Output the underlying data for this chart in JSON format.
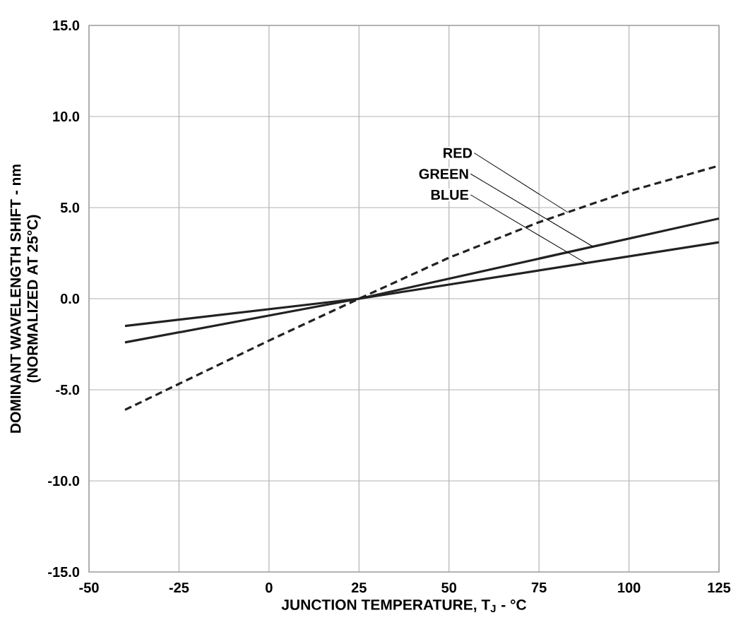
{
  "chart_data": {
    "type": "line",
    "xlabel": "JUNCTION TEMPERATURE, T$_{J}$ - °C",
    "ylabel": "DOMINANT WAVELENGTH SHIFT - nm\n(NORMALIZED AT 25°C)",
    "xlim": [
      -50,
      125
    ],
    "ylim": [
      -15,
      15
    ],
    "xticks": [
      -50,
      -25,
      0,
      25,
      50,
      75,
      100,
      125
    ],
    "yticks": [
      {
        "value": -15,
        "label": "-15.0"
      },
      {
        "value": -10,
        "label": "-10.0"
      },
      {
        "value": -5,
        "label": "-5.0"
      },
      {
        "value": 0,
        "label": "0.0"
      },
      {
        "value": 5,
        "label": "5.0"
      },
      {
        "value": 10,
        "label": "10.0"
      },
      {
        "value": 15,
        "label": "15.0"
      }
    ],
    "grid": true,
    "marker": "none",
    "series": [
      {
        "name": "RED",
        "color": "#222222",
        "line_style": "dashed",
        "x": [
          -40,
          0,
          25,
          50,
          75,
          100,
          125
        ],
        "values": [
          -6.1,
          -2.3,
          0,
          2.25,
          4.2,
          5.9,
          7.3
        ]
      },
      {
        "name": "GREEN",
        "color": "#222222",
        "line_style": "solid",
        "x": [
          -40,
          25,
          125
        ],
        "values": [
          -2.4,
          0,
          4.4
        ]
      },
      {
        "name": "BLUE",
        "color": "#222222",
        "line_style": "solid",
        "x": [
          -40,
          25,
          125
        ],
        "values": [
          -1.5,
          0,
          3.1
        ]
      }
    ]
  }
}
